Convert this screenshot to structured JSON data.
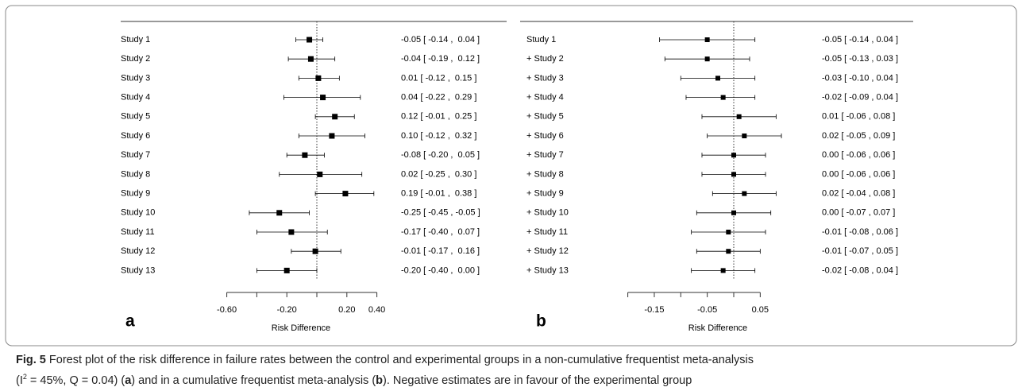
{
  "chart_data": [
    {
      "type": "forest",
      "panel_label": "a",
      "xlabel": "Risk Difference",
      "categories": [
        "Study 1",
        "Study 2",
        "Study 3",
        "Study 4",
        "Study 5",
        "Study 6",
        "Study 7",
        "Study 8",
        "Study 9",
        "Study 10",
        "Study 11",
        "Study 12",
        "Study 13"
      ],
      "values": [
        -0.05,
        -0.04,
        0.01,
        0.04,
        0.12,
        0.1,
        -0.08,
        0.02,
        0.19,
        -0.25,
        -0.17,
        -0.01,
        -0.2
      ],
      "lower": [
        -0.14,
        -0.19,
        -0.12,
        -0.22,
        -0.01,
        -0.12,
        -0.2,
        -0.25,
        -0.01,
        -0.45,
        -0.4,
        -0.17,
        -0.4
      ],
      "upper": [
        0.04,
        0.12,
        0.15,
        0.29,
        0.25,
        0.32,
        0.05,
        0.3,
        0.38,
        -0.05,
        0.07,
        0.16,
        0.0
      ],
      "value_labels": [
        "-0.05 [ -0.14 ,  0.04 ]",
        "-0.04 [ -0.19 ,  0.12 ]",
        "0.01 [ -0.12 ,  0.15 ]",
        "0.04 [ -0.22 ,  0.29 ]",
        "0.12 [ -0.01 ,  0.25 ]",
        "0.10 [ -0.12 ,  0.32 ]",
        "-0.08 [ -0.20 ,  0.05 ]",
        "0.02 [ -0.25 ,  0.30 ]",
        "0.19 [ -0.01 ,  0.38 ]",
        "-0.25 [ -0.45 , -0.05 ]",
        "-0.17 [ -0.40 ,  0.07 ]",
        "-0.01 [ -0.17 ,  0.16 ]",
        "-0.20 [ -0.40 ,  0.00 ]"
      ],
      "xlim": [
        -0.6,
        0.4
      ],
      "xticks": [
        {
          "value": -0.6,
          "label": "-0.60"
        },
        {
          "value": -0.2,
          "label": "-0.20"
        },
        {
          "value": 0.2,
          "label": "0.20"
        },
        {
          "value": 0.4,
          "label": "0.40"
        }
      ],
      "minor_xticks": [
        -0.4,
        0
      ],
      "reference_line": 0,
      "color": "#000000"
    },
    {
      "type": "forest",
      "panel_label": "b",
      "xlabel": "Risk Difference",
      "categories": [
        "Study 1",
        "+ Study 2",
        "+ Study 3",
        "+ Study 4",
        "+ Study 5",
        "+ Study 6",
        "+ Study 7",
        "+ Study 8",
        "+ Study 9",
        "+ Study 10",
        "+ Study 11",
        "+ Study 12",
        "+ Study 13"
      ],
      "values": [
        -0.05,
        -0.05,
        -0.03,
        -0.02,
        0.01,
        0.02,
        0.0,
        0.0,
        0.02,
        0.0,
        -0.01,
        -0.01,
        -0.02
      ],
      "lower": [
        -0.14,
        -0.13,
        -0.1,
        -0.09,
        -0.06,
        -0.05,
        -0.06,
        -0.06,
        -0.04,
        -0.07,
        -0.08,
        -0.07,
        -0.08
      ],
      "upper": [
        0.04,
        0.03,
        0.04,
        0.04,
        0.08,
        0.09,
        0.06,
        0.06,
        0.08,
        0.07,
        0.06,
        0.05,
        0.04
      ],
      "value_labels": [
        "-0.05 [ -0.14 , 0.04 ]",
        "-0.05 [ -0.13 , 0.03 ]",
        "-0.03 [ -0.10 , 0.04 ]",
        "-0.02 [ -0.09 , 0.04 ]",
        "0.01 [ -0.06 , 0.08 ]",
        "0.02 [ -0.05 , 0.09 ]",
        "0.00 [ -0.06 , 0.06 ]",
        "0.00 [ -0.06 , 0.06 ]",
        "0.02 [ -0.04 , 0.08 ]",
        "0.00 [ -0.07 , 0.07 ]",
        "-0.01 [ -0.08 , 0.06 ]",
        "-0.01 [ -0.07 , 0.05 ]",
        "-0.02 [ -0.08 , 0.04 ]"
      ],
      "xlim": [
        -0.2,
        0.05
      ],
      "xticks": [
        {
          "value": -0.15,
          "label": "-0.15"
        },
        {
          "value": -0.05,
          "label": "-0.05"
        },
        {
          "value": 0.05,
          "label": "0.05"
        }
      ],
      "minor_xticks": [
        -0.2,
        -0.1,
        0
      ],
      "reference_line": 0,
      "color": "#000000"
    }
  ],
  "caption": {
    "lines": [
      [
        {
          "text": "Fig. 5",
          "bold": true
        },
        {
          "text": " Forest plot of the risk difference in failure rates between the control and experimental groups in a non-cumulative frequentist meta-analysis"
        }
      ],
      [
        {
          "text": "(I"
        },
        {
          "text": "2",
          "sup": true
        },
        {
          "text": " = 45%, Q = 0.04) ("
        },
        {
          "text": "a",
          "bold": true
        },
        {
          "text": ") and in a cumulative frequentist meta-analysis ("
        },
        {
          "text": "b",
          "bold": true
        },
        {
          "text": "). Negative estimates are in favour of the experimental group"
        }
      ]
    ]
  }
}
